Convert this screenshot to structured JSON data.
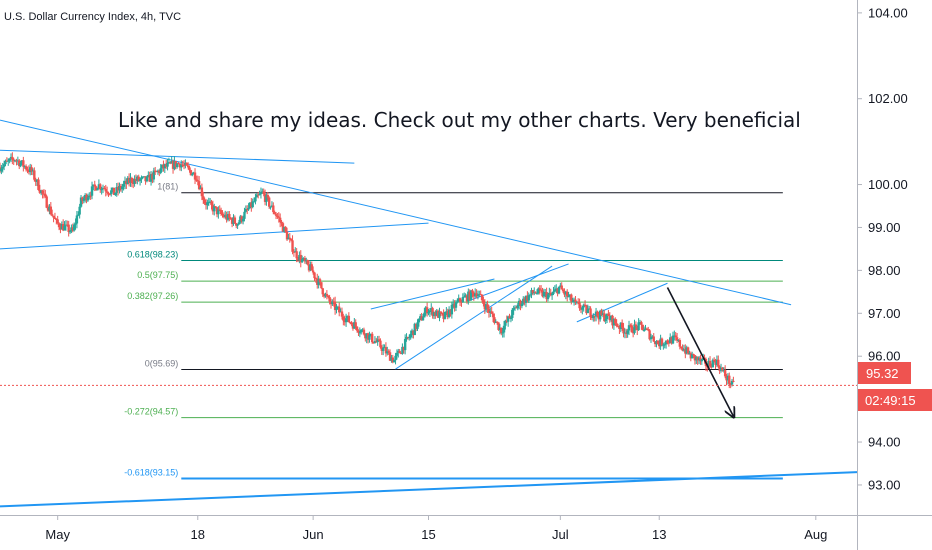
{
  "header": {
    "symbol_title": "U.S. Dollar Currency Index, 4h, TVC"
  },
  "annotation": {
    "text": "Like and share my ideas. Check out my other charts. Very beneficial"
  },
  "price_axis": {
    "ticks": [
      {
        "value": 104,
        "label": "104.00"
      },
      {
        "value": 102,
        "label": "102.00"
      },
      {
        "value": 100,
        "label": "100.00"
      },
      {
        "value": 99,
        "label": "99.00"
      },
      {
        "value": 98,
        "label": "98.00"
      },
      {
        "value": 97,
        "label": "97.00"
      },
      {
        "value": 96,
        "label": "96.00"
      },
      {
        "value": 94,
        "label": "94.00"
      },
      {
        "value": 93,
        "label": "93.00"
      }
    ]
  },
  "last_price": {
    "value": 95.32,
    "label": "95.32",
    "countdown": "02:49:15",
    "color": "#ef5350"
  },
  "colors": {
    "up": "#26a69a",
    "down": "#ef5350",
    "trend": "#2196f3",
    "fib_main": "#4caf50",
    "fib_dark": "#00897b",
    "fib_zero": "#787b86"
  },
  "chart_data": {
    "type": "candlestick",
    "ylim": [
      92.3,
      104.3
    ],
    "x_range": [
      "2020-04-24",
      "2020-08-06"
    ],
    "time_axis": [
      {
        "date": "2020-05-01",
        "label": "May"
      },
      {
        "date": "2020-05-18",
        "label": "18"
      },
      {
        "date": "2020-06-01",
        "label": "Jun"
      },
      {
        "date": "2020-06-15",
        "label": "15"
      },
      {
        "date": "2020-07-01",
        "label": "Jul"
      },
      {
        "date": "2020-07-13",
        "label": "13"
      },
      {
        "date": "2020-08-01",
        "label": "Aug"
      }
    ],
    "price_path": [
      [
        "2020-04-24",
        100.4
      ],
      [
        "2020-04-26",
        100.6
      ],
      [
        "2020-04-28",
        100.3
      ],
      [
        "2020-04-30",
        99.5
      ],
      [
        "2020-05-01",
        99.1
      ],
      [
        "2020-05-03",
        98.9
      ],
      [
        "2020-05-04",
        99.6
      ],
      [
        "2020-05-06",
        100.0
      ],
      [
        "2020-05-08",
        99.8
      ],
      [
        "2020-05-10",
        100.1
      ],
      [
        "2020-05-12",
        100.1
      ],
      [
        "2020-05-14",
        100.4
      ],
      [
        "2020-05-16",
        100.5
      ],
      [
        "2020-05-18",
        100.2
      ],
      [
        "2020-05-19",
        99.6
      ],
      [
        "2020-05-21",
        99.3
      ],
      [
        "2020-05-23",
        99.1
      ],
      [
        "2020-05-25",
        99.6
      ],
      [
        "2020-05-26",
        99.8
      ],
      [
        "2020-05-28",
        99.2
      ],
      [
        "2020-05-30",
        98.4
      ],
      [
        "2020-06-01",
        98.0
      ],
      [
        "2020-06-03",
        97.3
      ],
      [
        "2020-06-05",
        96.9
      ],
      [
        "2020-06-07",
        96.6
      ],
      [
        "2020-06-09",
        96.3
      ],
      [
        "2020-06-10",
        96.1
      ],
      [
        "2020-06-11",
        95.9
      ],
      [
        "2020-06-13",
        96.5
      ],
      [
        "2020-06-15",
        97.1
      ],
      [
        "2020-06-17",
        96.9
      ],
      [
        "2020-06-19",
        97.3
      ],
      [
        "2020-06-21",
        97.5
      ],
      [
        "2020-06-22",
        97.2
      ],
      [
        "2020-06-24",
        96.6
      ],
      [
        "2020-06-26",
        97.2
      ],
      [
        "2020-06-28",
        97.5
      ],
      [
        "2020-06-30",
        97.4
      ],
      [
        "2020-07-01",
        97.6
      ],
      [
        "2020-07-03",
        97.2
      ],
      [
        "2020-07-05",
        97.0
      ],
      [
        "2020-07-07",
        96.9
      ],
      [
        "2020-07-09",
        96.6
      ],
      [
        "2020-07-11",
        96.7
      ],
      [
        "2020-07-13",
        96.3
      ],
      [
        "2020-07-15",
        96.4
      ],
      [
        "2020-07-17",
        96.0
      ],
      [
        "2020-07-19",
        95.8
      ],
      [
        "2020-07-20",
        95.9
      ],
      [
        "2020-07-21",
        95.6
      ],
      [
        "2020-07-22",
        95.32
      ]
    ],
    "fib_levels": [
      {
        "label": "0.618(98.23)",
        "value": 98.23,
        "color": "#00897b"
      },
      {
        "label": "0.5(97.75)",
        "value": 97.75,
        "color": "#4caf50"
      },
      {
        "label": "0.382(97.26)",
        "value": 97.26,
        "color": "#4caf50"
      },
      {
        "label": "0(95.69)",
        "value": 95.69,
        "color": "#787b86"
      },
      {
        "label": "-0.272(94.57)",
        "value": 94.57,
        "color": "#4caf50"
      },
      {
        "label": "-0.618(93.15)",
        "value": 93.15,
        "color": "#2196f3"
      }
    ],
    "fib_top_label": "1(",
    "fib_top_label_suffix": "81)",
    "fib_top_value": 99.81,
    "trend_lines": [
      {
        "name": "upper-descending-trendline",
        "from": [
          "2020-04-24",
          101.5
        ],
        "to": [
          "2020-07-29",
          97.2
        ]
      },
      {
        "name": "upper-horizontal-trendline",
        "from": [
          "2020-04-24",
          100.8
        ],
        "to": [
          "2020-06-06",
          100.5
        ]
      },
      {
        "name": "lower-rising-trendline",
        "from": [
          "2020-04-24",
          98.5
        ],
        "to": [
          "2020-06-15",
          99.1
        ]
      },
      {
        "name": "wedge-upper-line",
        "from": [
          "2020-06-08",
          97.1
        ],
        "to": [
          "2020-06-23",
          97.8
        ]
      },
      {
        "name": "wedge-lower-line",
        "from": [
          "2020-06-11",
          95.7
        ],
        "to": [
          "2020-06-30",
          98.1
        ]
      },
      {
        "name": "rising-channel-line",
        "from": [
          "2020-06-20",
          97.3
        ],
        "to": [
          "2020-07-02",
          98.15
        ]
      },
      {
        "name": "small-rising-line",
        "from": [
          "2020-07-03",
          96.8
        ],
        "to": [
          "2020-07-14",
          97.7
        ]
      },
      {
        "name": "long-rising-support-line",
        "from": [
          "2020-04-24",
          92.5
        ],
        "to": [
          "2020-08-06",
          93.3
        ]
      }
    ],
    "forecast_arrow": {
      "from": [
        "2020-07-14",
        97.6
      ],
      "to": [
        "2020-07-22",
        94.6
      ]
    }
  }
}
